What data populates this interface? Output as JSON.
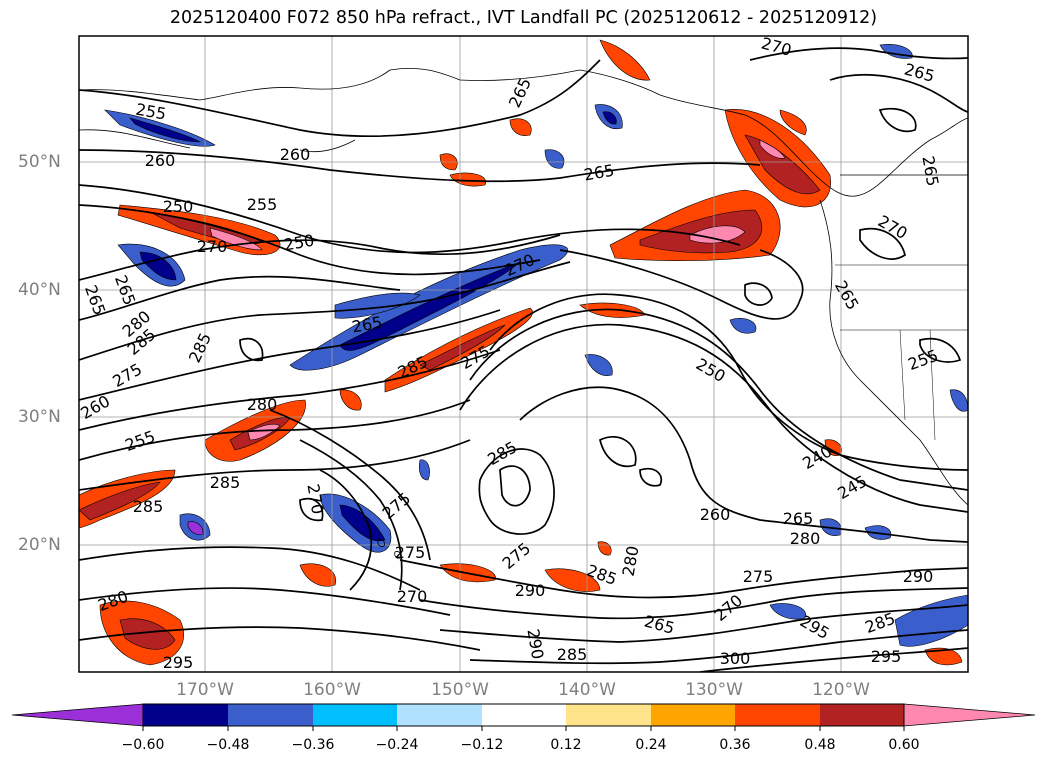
{
  "title": "2025120400 F072 850 hPa refract., IVT Landfall PC (2025120612 - 2025120912)",
  "lat_labels": [
    "50°N",
    "40°N",
    "30°N",
    "20°N"
  ],
  "lon_labels": [
    "170°W",
    "160°W",
    "150°W",
    "140°W",
    "130°W",
    "120°W"
  ],
  "colorbar": {
    "ticks": [
      "−0.60",
      "−0.48",
      "−0.36",
      "−0.24",
      "−0.12",
      "0.12",
      "0.24",
      "0.36",
      "0.48",
      "0.60"
    ],
    "colors": [
      "#9b30d9",
      "#00008b",
      "#3a5fcd",
      "#00bfff",
      "#b0e2ff",
      "#ffffff",
      "#ffe38a",
      "#ffa500",
      "#ff4500",
      "#b22222",
      "#ff88b0"
    ]
  },
  "contour_labels": [
    "255",
    "260",
    "260",
    "265",
    "265",
    "270",
    "265",
    "250",
    "255",
    "250",
    "270",
    "270",
    "265",
    "265",
    "265",
    "280",
    "285",
    "260",
    "275",
    "285",
    "280",
    "275",
    "285",
    "285",
    "255",
    "285",
    "270",
    "285",
    "275",
    "275",
    "250",
    "240",
    "245",
    "260",
    "265",
    "280",
    "275",
    "290",
    "290",
    "285",
    "280",
    "270",
    "275",
    "265",
    "285",
    "290",
    "295",
    "300",
    "285",
    "295",
    "295",
    "280",
    "270",
    "255",
    "265",
    "270",
    "265"
  ]
}
